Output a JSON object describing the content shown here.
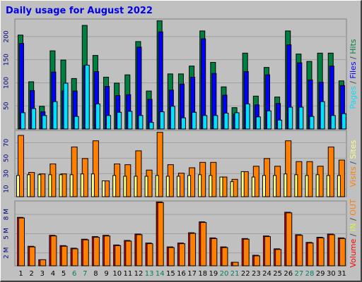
{
  "title": "Daily usage for August 2022",
  "colors": {
    "background": "#c0c0c0",
    "plot": "#c0c0c0",
    "hits": "#008040",
    "files": "#0000ff",
    "pages": "#00e0ff",
    "visits": "#ff8000",
    "sites": "#ffff80",
    "kbytes": "#ff0000",
    "kbytes_in": "#e0f040",
    "kbytes_out": "#ff8000",
    "grid": "#a0a0a0"
  },
  "chart_data": [
    {
      "type": "bar",
      "panel": "hits_files_pages",
      "categories": [
        "1",
        "2",
        "3",
        "4",
        "5",
        "6",
        "7",
        "8",
        "9",
        "10",
        "11",
        "12",
        "13",
        "14",
        "15",
        "16",
        "17",
        "18",
        "19",
        "20",
        "21",
        "22",
        "23",
        "24",
        "25",
        "26",
        "27",
        "28",
        "29",
        "30",
        "31"
      ],
      "weekend_days": [
        "6",
        "7",
        "13",
        "14",
        "20",
        "21",
        "27",
        "28"
      ],
      "y_ticks": [
        50,
        100,
        150,
        200
      ],
      "ylim": [
        0,
        238
      ],
      "legend": "Pages / Files / Hits",
      "legend_parts": [
        "Pages",
        "Files",
        "Hits"
      ],
      "series": [
        {
          "name": "Hits",
          "values": [
            204,
            103,
            50,
            170,
            150,
            110,
            225,
            160,
            113,
            100,
            118,
            190,
            83,
            235,
            120,
            120,
            137,
            213,
            145,
            92,
            47,
            165,
            72,
            134,
            70,
            213,
            163,
            147,
            165,
            165,
            105
          ]
        },
        {
          "name": "Files",
          "values": [
            186,
            84,
            38,
            124,
            83,
            83,
            138,
            125,
            93,
            73,
            75,
            178,
            65,
            211,
            85,
            98,
            113,
            196,
            121,
            74,
            33,
            125,
            53,
            118,
            56,
            183,
            144,
            107,
            102,
            137,
            95
          ]
        },
        {
          "name": "Pages",
          "values": [
            36,
            45,
            30,
            60,
            100,
            28,
            139,
            55,
            30,
            37,
            39,
            30,
            15,
            38,
            50,
            25,
            37,
            30,
            30,
            35,
            36,
            55,
            27,
            40,
            20,
            48,
            48,
            28,
            60,
            30,
            34
          ]
        }
      ]
    },
    {
      "type": "bar",
      "panel": "visits_sites",
      "categories": [
        "1",
        "2",
        "3",
        "4",
        "5",
        "6",
        "7",
        "8",
        "9",
        "10",
        "11",
        "12",
        "13",
        "14",
        "15",
        "16",
        "17",
        "18",
        "19",
        "20",
        "21",
        "22",
        "23",
        "24",
        "25",
        "26",
        "27",
        "28",
        "29",
        "30",
        "31"
      ],
      "y_ticks": [
        10,
        30,
        50,
        70
      ],
      "ylim": [
        0,
        86
      ],
      "legend": "Visits / Sites",
      "legend_parts": [
        "Visits",
        "Sites"
      ],
      "series": [
        {
          "name": "Visits",
          "values": [
            80,
            32,
            30,
            43,
            30,
            65,
            50,
            73,
            21,
            43,
            42,
            60,
            35,
            84,
            42,
            31,
            38,
            45,
            45,
            26,
            23,
            33,
            40,
            50,
            40,
            73,
            46,
            46,
            40,
            65,
            48
          ]
        },
        {
          "name": "Sites",
          "values": [
            28,
            29,
            29,
            29,
            29,
            29,
            30,
            30,
            21,
            28,
            27,
            27,
            27,
            28,
            27,
            27,
            28,
            29,
            28,
            26,
            20,
            33,
            26,
            28,
            28,
            30,
            29,
            28,
            29,
            28,
            28
          ]
        }
      ]
    },
    {
      "type": "bar",
      "panel": "volume",
      "categories": [
        "1",
        "2",
        "3",
        "4",
        "5",
        "6",
        "7",
        "8",
        "9",
        "10",
        "11",
        "12",
        "13",
        "14",
        "15",
        "16",
        "17",
        "18",
        "19",
        "20",
        "21",
        "22",
        "23",
        "24",
        "25",
        "26",
        "27",
        "28",
        "29",
        "30",
        "31"
      ],
      "y_ticks": [
        2,
        5,
        8
      ],
      "y_tick_labels": [
        "2 M",
        "5 M",
        "8 M"
      ],
      "y_unit": "MB",
      "ylim": [
        0,
        10.1
      ],
      "legend": "Volume / IN / OUT",
      "legend_parts": [
        "Volume",
        "IN",
        "OUT"
      ],
      "series": [
        {
          "name": "Volume",
          "values": [
            7.6,
            3.1,
            1.0,
            4.8,
            3.2,
            2.8,
            4.2,
            4.6,
            4.8,
            3.3,
            4.0,
            5.0,
            3.6,
            10.0,
            3.0,
            3.6,
            5.2,
            6.9,
            4.4,
            3.0,
            0.6,
            4.3,
            1.7,
            4.7,
            2.7,
            8.4,
            4.9,
            3.7,
            4.5,
            5.0,
            4.4
          ]
        },
        {
          "name": "IN",
          "values": [
            0,
            0,
            0,
            0,
            0,
            0,
            0,
            0,
            0,
            0,
            0,
            0,
            0,
            0,
            0,
            0,
            0,
            0,
            0,
            0,
            0,
            0,
            0,
            0,
            0,
            0,
            0,
            0,
            0,
            0,
            0
          ]
        },
        {
          "name": "OUT",
          "values": [
            7.5,
            3.0,
            1.0,
            4.7,
            3.1,
            2.7,
            4.1,
            4.5,
            4.7,
            3.2,
            3.9,
            4.9,
            3.5,
            9.9,
            2.9,
            3.5,
            5.1,
            6.8,
            4.3,
            2.9,
            0.6,
            4.2,
            1.6,
            4.6,
            2.6,
            8.3,
            4.8,
            3.6,
            4.4,
            4.9,
            4.3
          ]
        }
      ]
    }
  ]
}
